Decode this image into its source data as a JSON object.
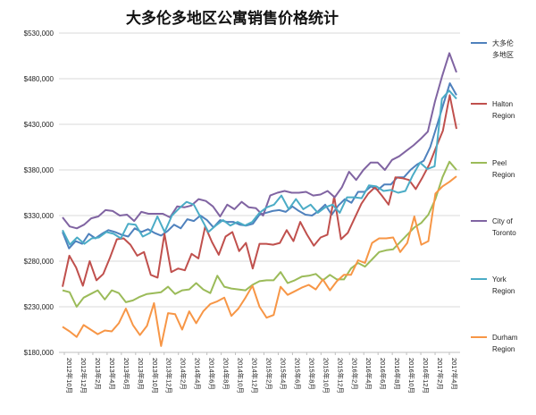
{
  "chart_data": {
    "type": "line",
    "title": "大多伦多地区公寓销售价格统计",
    "xlabel": "",
    "ylabel": "",
    "ylim": [
      180000,
      530000
    ],
    "yticks": [
      180000,
      230000,
      280000,
      330000,
      380000,
      430000,
      480000,
      530000
    ],
    "ytick_labels": [
      "$180,000",
      "$230,000",
      "$280,000",
      "$330,000",
      "$380,000",
      "$430,000",
      "$480,000",
      "$530,000"
    ],
    "grid": "horizontal",
    "legend_position": "right",
    "x_ticks": [
      "2012年10月",
      "2012年12月",
      "2013年2月",
      "2013年4月",
      "2013年6月",
      "2013年8月",
      "2013年10月",
      "2013年12月",
      "2014年2月",
      "2014年4月",
      "2014年6月",
      "2014年8月",
      "2014年10月",
      "2014年12月",
      "2015年2月",
      "2015年4月",
      "2015年6月",
      "2015年8月",
      "2015年10月",
      "2015年12月",
      "2016年2月",
      "2016年4月",
      "2016年6月",
      "2016年8月",
      "2016年10月",
      "2016年12月",
      "2017年2月",
      "2017年4月"
    ],
    "series": [
      {
        "name": "大多伦多地区",
        "color": "#4f81bd",
        "values": [
          312000,
          294000,
          302000,
          299000,
          310000,
          305000,
          310000,
          314000,
          312000,
          309000,
          307000,
          316000,
          312000,
          315000,
          311000,
          308000,
          313000,
          320000,
          316000,
          326000,
          324000,
          330000,
          325000,
          317000,
          325000,
          323000,
          323000,
          320000,
          319000,
          321000,
          331000,
          333000,
          335000,
          336000,
          334000,
          340000,
          335000,
          331000,
          330000,
          335000,
          342000,
          331000,
          341000,
          348000,
          344000,
          356000,
          356000,
          362000,
          358000,
          364000,
          364000,
          372000,
          372000,
          380000,
          386000,
          390000,
          405000,
          428000,
          452000,
          475000,
          462000
        ]
      },
      {
        "name": "Halton Region",
        "color": "#c0504d",
        "values": [
          252000,
          286000,
          273000,
          253000,
          280000,
          259000,
          266000,
          284000,
          304000,
          305000,
          298000,
          286000,
          290000,
          265000,
          262000,
          310000,
          268000,
          272000,
          270000,
          288000,
          283000,
          318000,
          301000,
          287000,
          307000,
          312000,
          291000,
          300000,
          272000,
          299000,
          299000,
          298000,
          300000,
          314000,
          302000,
          323000,
          309000,
          297000,
          306000,
          309000,
          351000,
          304000,
          311000,
          327000,
          343000,
          354000,
          361000,
          352000,
          342000,
          372000,
          371000,
          369000,
          359000,
          372000,
          386000,
          405000,
          423000,
          462000,
          425000
        ]
      },
      {
        "name": "Peel Region",
        "color": "#9bbb59",
        "values": [
          248000,
          246000,
          230000,
          240000,
          244000,
          248000,
          238000,
          248000,
          245000,
          235000,
          237000,
          241000,
          244000,
          245000,
          246000,
          252000,
          244000,
          248000,
          249000,
          256000,
          249000,
          245000,
          264000,
          252000,
          250000,
          249000,
          248000,
          254000,
          258000,
          259000,
          259000,
          268000,
          256000,
          259000,
          263000,
          264000,
          266000,
          259000,
          265000,
          260000,
          260000,
          272000,
          278000,
          274000,
          282000,
          290000,
          292000,
          293000,
          301000,
          309000,
          317000,
          322000,
          331000,
          348000,
          372000,
          389000,
          380000
        ]
      },
      {
        "name": "City of Toronto",
        "color": "#8064a2",
        "values": [
          328000,
          318000,
          316000,
          320000,
          327000,
          329000,
          336000,
          335000,
          330000,
          331000,
          324000,
          334000,
          332000,
          332000,
          332000,
          328000,
          340000,
          339000,
          341000,
          348000,
          346000,
          340000,
          329000,
          342000,
          337000,
          345000,
          339000,
          338000,
          330000,
          352000,
          355000,
          357000,
          355000,
          355000,
          356000,
          352000,
          353000,
          357000,
          350000,
          361000,
          378000,
          369000,
          380000,
          388000,
          388000,
          380000,
          391000,
          395000,
          401000,
          407000,
          414000,
          422000,
          455000,
          483000,
          508000,
          487000
        ]
      },
      {
        "name": "York Region",
        "color": "#4bacc6",
        "values": [
          314000,
          298000,
          306000,
          299000,
          305000,
          306000,
          312000,
          310000,
          305000,
          321000,
          320000,
          307000,
          311000,
          329000,
          312000,
          330000,
          338000,
          345000,
          342000,
          327000,
          312000,
          319000,
          325000,
          319000,
          323000,
          319000,
          323000,
          333000,
          339000,
          342000,
          352000,
          337000,
          348000,
          337000,
          342000,
          333000,
          339000,
          342000,
          333000,
          350000,
          350000,
          349000,
          363000,
          362000,
          357000,
          358000,
          355000,
          357000,
          374000,
          388000,
          381000,
          384000,
          458000,
          467000,
          458000
        ]
      },
      {
        "name": "Durham Region",
        "color": "#f79646",
        "values": [
          208000,
          203000,
          197000,
          210000,
          205000,
          200000,
          204000,
          203000,
          212000,
          228000,
          210000,
          199000,
          209000,
          234000,
          187000,
          223000,
          222000,
          205000,
          225000,
          212000,
          225000,
          233000,
          236000,
          240000,
          220000,
          228000,
          240000,
          253000,
          230000,
          218000,
          221000,
          252000,
          243000,
          247000,
          251000,
          254000,
          249000,
          260000,
          248000,
          258000,
          265000,
          265000,
          281000,
          278000,
          300000,
          305000,
          305000,
          306000,
          290000,
          300000,
          329000,
          298000,
          302000,
          354000,
          362000,
          367000,
          373000
        ]
      }
    ],
    "legend_labels": [
      [
        "大多伦",
        "多地区"
      ],
      [
        "Halton",
        "Region"
      ],
      [
        "Peel",
        "Region"
      ],
      [
        "City of",
        "Toronto"
      ],
      [
        "York",
        "Region"
      ],
      [
        "Durham",
        "Region"
      ]
    ]
  }
}
